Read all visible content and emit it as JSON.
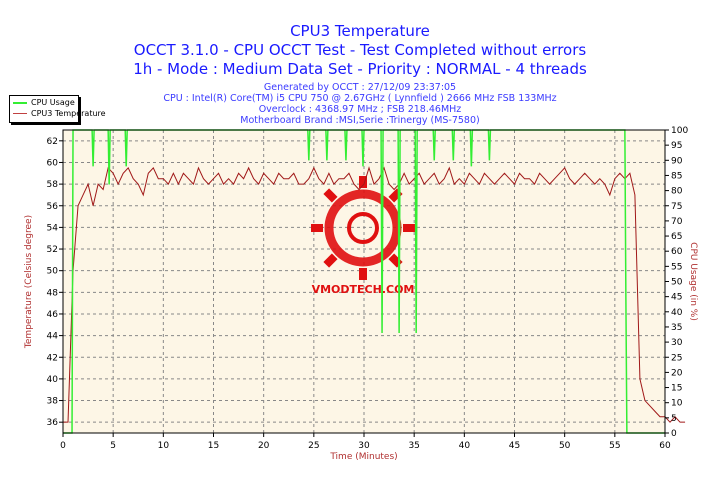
{
  "header": {
    "title": "CPU3 Temperature",
    "line2": "OCCT 3.1.0 - CPU OCCT Test - Test Completed without errors",
    "line3": "1h - Mode : Medium Data Set - Priority : NORMAL - 4 threads",
    "generated": "Generated by OCCT : 27/12/09 23:37:05",
    "cpu": "CPU : Intel(R) Core(TM) i5 CPU 750 @ 2.67GHz ( Lynnfield ) 2666 MHz FSB 133MHz",
    "overclock": "Overclock : 4368.97 MHz ; FSB 218.46MHz",
    "motherboard": "Motherboard Brand :MSI,Serie :Trinergy (MS-7580)"
  },
  "watermark": "VMODTECH.COM",
  "chart_data": {
    "type": "line",
    "xlabel": "Time (Minutes)",
    "ylabel": "Temperature (Celsius degree)",
    "y2label": "CPU Usage (in %)",
    "xlim": [
      0,
      60
    ],
    "ylim": [
      35,
      63
    ],
    "y2lim": [
      0,
      100
    ],
    "xticks": [
      0,
      5,
      10,
      15,
      20,
      25,
      30,
      35,
      40,
      45,
      50,
      55,
      60
    ],
    "yticks": [
      36,
      38,
      40,
      42,
      44,
      46,
      48,
      50,
      52,
      54,
      56,
      58,
      60,
      62
    ],
    "y2ticks": [
      0,
      5,
      10,
      15,
      20,
      25,
      30,
      35,
      40,
      45,
      50,
      55,
      60,
      65,
      70,
      75,
      80,
      85,
      90,
      95,
      100
    ],
    "grid": true,
    "legend_position": "top-left",
    "colors": {
      "cpu_usage": "#33ee33",
      "temperature": "#a01818",
      "background": "#fdf6e6"
    },
    "series": [
      {
        "name": "CPU3 Temperature",
        "axis": "left",
        "x_step_minutes": 0.5,
        "values": [
          36,
          36,
          50,
          56,
          57,
          58,
          56,
          58,
          57.5,
          59.5,
          59,
          58,
          59,
          59.5,
          58.5,
          58,
          57,
          59,
          59.5,
          58.5,
          58.5,
          58,
          59,
          58,
          59,
          58.5,
          58,
          59.5,
          58.5,
          58,
          58.5,
          59,
          58,
          58.5,
          58,
          59,
          58.5,
          59.5,
          58.5,
          58,
          59,
          58.5,
          58,
          59,
          58.5,
          58.5,
          59,
          58,
          58,
          58.5,
          59.5,
          58.5,
          58,
          59,
          58,
          58.5,
          58.5,
          59,
          58,
          57.5,
          58,
          59.5,
          58,
          58.5,
          59.5,
          58,
          57.5,
          58,
          59,
          58,
          58.5,
          59,
          58,
          58.5,
          59,
          58,
          58.5,
          59.5,
          58,
          58.5,
          58,
          59,
          58.5,
          58,
          59,
          58.5,
          58,
          58.5,
          59,
          58.5,
          58,
          59,
          58.5,
          58.5,
          58,
          59,
          58.5,
          58,
          58.5,
          59,
          59.5,
          58.5,
          58,
          58.5,
          59,
          58.5,
          58,
          58.5,
          58,
          57,
          58.5,
          59,
          58.5,
          59,
          57,
          40,
          38,
          37.5,
          37,
          36.5,
          36.5,
          36,
          36.5,
          36,
          36
        ]
      },
      {
        "name": "CPU Usage",
        "axis": "right",
        "x": [
          0,
          0.9,
          1.0,
          1.1,
          2.9,
          3.0,
          3.1,
          4.5,
          4.6,
          4.7,
          6.2,
          6.3,
          6.4,
          24.4,
          24.5,
          24.6,
          26.2,
          26.3,
          26.4,
          28.1,
          28.2,
          28.3,
          29.8,
          29.9,
          30.0,
          31.7,
          31.8,
          31.9,
          33.4,
          33.5,
          33.6,
          35.1,
          35.2,
          35.3,
          36.9,
          37.0,
          37.1,
          38.8,
          38.9,
          39.0,
          40.6,
          40.7,
          40.8,
          42.4,
          42.5,
          42.6,
          56.0,
          56.1,
          56.2,
          60
        ],
        "y": [
          0,
          0,
          100,
          100,
          100,
          88,
          100,
          100,
          82,
          100,
          100,
          88,
          100,
          100,
          90,
          100,
          100,
          90,
          100,
          100,
          90,
          100,
          100,
          88,
          100,
          100,
          33,
          100,
          100,
          33,
          100,
          100,
          33,
          100,
          100,
          90,
          100,
          100,
          90,
          100,
          100,
          88,
          100,
          100,
          90,
          100,
          100,
          45,
          0,
          0
        ]
      }
    ]
  }
}
